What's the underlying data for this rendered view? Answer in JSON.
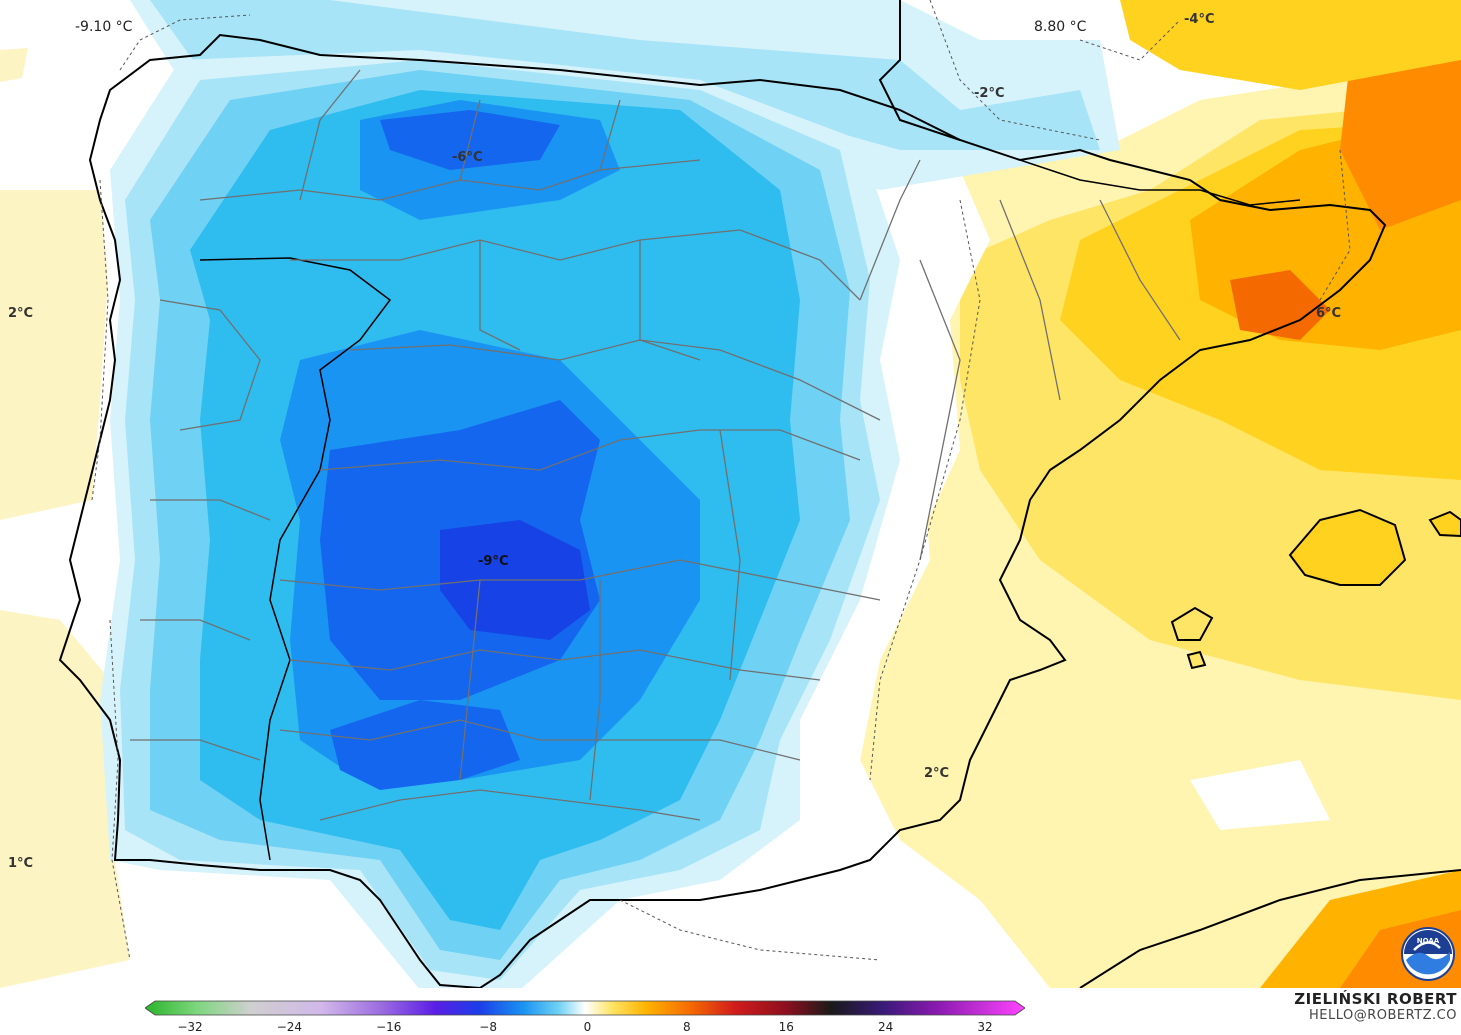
{
  "map": {
    "region": "Iberian Peninsula",
    "variable": "temperature",
    "labels": [
      {
        "id": "label-2c-west",
        "text": "2°C"
      },
      {
        "id": "label-1c-southwest",
        "text": "1°C"
      },
      {
        "id": "label-minus6-north",
        "text": "-6°C"
      },
      {
        "id": "label-minus9-center",
        "text": "-9°C"
      },
      {
        "id": "label-minus2-pyrenees",
        "text": "-2°C"
      },
      {
        "id": "label-minus4-france",
        "text": "-4°C"
      },
      {
        "id": "label-6c-catalonia",
        "text": "6°C"
      },
      {
        "id": "label-2c-murcia",
        "text": "2°C"
      }
    ],
    "colors": {
      "ocean_warm": "#fdf4c4",
      "ocean_white": "#ffffff",
      "cold_1": "#d6f3fb",
      "cold_2": "#a8e4f7",
      "cold_3": "#6fd1f4",
      "cold_4": "#2fbcef",
      "cold_5": "#1a94f2",
      "cold_6": "#1466ef",
      "cold_7": "#1642e6",
      "warm_1": "#fff4b0",
      "warm_2": "#ffe566",
      "warm_3": "#ffd21f",
      "warm_4": "#ffb300",
      "warm_5": "#ff8c00",
      "warm_6": "#f56a00",
      "coast": "#000000",
      "borders": "#707070"
    }
  },
  "legend": {
    "min_value": "-9.10 °C",
    "max_value": "8.80 °C",
    "ticks": [
      "−32",
      "−24",
      "−16",
      "−8",
      "0",
      "8",
      "16",
      "24",
      "32"
    ]
  },
  "credits": {
    "author": "ZIELIŃSKI ROBERT",
    "email": "HELLO@ROBERTZ.CO",
    "logo": "noaa-logo"
  }
}
